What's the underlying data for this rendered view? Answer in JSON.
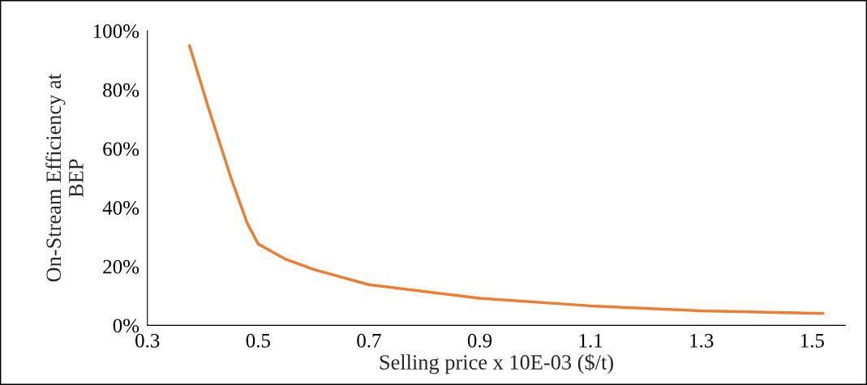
{
  "chart_data": {
    "type": "line",
    "xlabel": "Selling price x 10E-03 ($/t)",
    "ylabel": "On-Stream Efficiency at\nBEP",
    "xlim": [
      0.3,
      1.56
    ],
    "xticks": [
      0.3,
      0.5,
      0.7,
      0.9,
      1.1,
      1.3,
      1.5
    ],
    "ylim": [
      0,
      100
    ],
    "yticks": [
      {
        "value": 0,
        "label": "0%"
      },
      {
        "value": 20,
        "label": "20%"
      },
      {
        "value": 40,
        "label": "40%"
      },
      {
        "value": 60,
        "label": "60%"
      },
      {
        "value": 80,
        "label": "80%"
      },
      {
        "value": 100,
        "label": "100%"
      }
    ],
    "series": [
      {
        "color": "#ed7d31",
        "x": [
          0.376,
          0.41,
          0.45,
          0.48,
          0.5,
          0.55,
          0.6,
          0.7,
          0.9,
          1.1,
          1.3,
          1.52
        ],
        "values": [
          95,
          74,
          50.6,
          34.8,
          27.6,
          22.4,
          19,
          13.8,
          9.2,
          6.6,
          4.9,
          4
        ]
      }
    ]
  }
}
